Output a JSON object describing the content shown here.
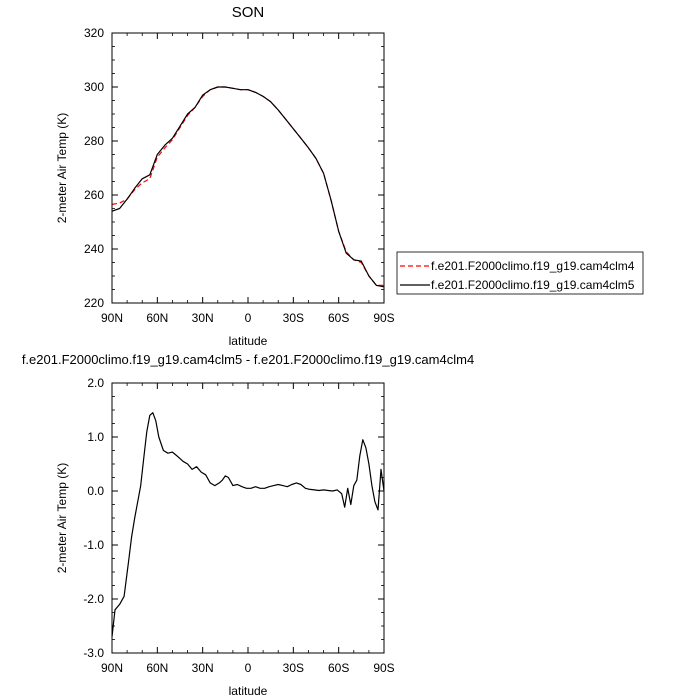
{
  "chart_data": [
    {
      "type": "line",
      "title": "SON",
      "xlabel": "latitude",
      "ylabel": "2-meter Air Temp (K)",
      "x_ticks": [
        "90N",
        "60N",
        "30N",
        "0",
        "30S",
        "60S",
        "90S"
      ],
      "y_ticks": [
        "220",
        "240",
        "260",
        "280",
        "300",
        "320"
      ],
      "xlim": [
        90,
        -90
      ],
      "ylim": [
        220,
        320
      ],
      "legend_position": "right",
      "series": [
        {
          "name": "f.e201.F2000climo.f19_g19.cam4clm4",
          "color": "#ff0000",
          "dash": "dashed",
          "x": [
            90,
            85,
            80,
            75,
            70,
            65,
            60,
            55,
            50,
            45,
            40,
            35,
            30,
            25,
            20,
            15,
            10,
            5,
            0,
            -5,
            -10,
            -15,
            -20,
            -25,
            -30,
            -35,
            -40,
            -45,
            -50,
            -55,
            -60,
            -65,
            -70,
            -75,
            -80,
            -85,
            -90
          ],
          "values": [
            256.5,
            257.0,
            258.5,
            262.0,
            264.5,
            266.0,
            274.0,
            277.5,
            280.5,
            285.0,
            289.5,
            292.5,
            296.5,
            299.0,
            300.0,
            300.0,
            299.5,
            299.0,
            299.0,
            298.0,
            296.5,
            294.5,
            291.5,
            288.0,
            284.5,
            281.0,
            277.5,
            273.5,
            268.0,
            258.0,
            246.5,
            239.0,
            236.0,
            235.0,
            230.0,
            226.5,
            226.5
          ]
        },
        {
          "name": "f.e201.F2000climo.f19_g19.cam4clm5",
          "color": "#000000",
          "dash": "solid",
          "x": [
            90,
            85,
            80,
            75,
            70,
            65,
            60,
            55,
            50,
            45,
            40,
            35,
            30,
            25,
            20,
            15,
            10,
            5,
            0,
            -5,
            -10,
            -15,
            -20,
            -25,
            -30,
            -35,
            -40,
            -45,
            -50,
            -55,
            -60,
            -65,
            -70,
            -75,
            -80,
            -85,
            -90
          ],
          "values": [
            254.0,
            255.0,
            258.5,
            262.5,
            266.0,
            267.5,
            275.0,
            278.5,
            281.0,
            285.5,
            290.0,
            292.5,
            297.0,
            299.0,
            300.0,
            300.0,
            299.5,
            299.0,
            299.0,
            298.0,
            296.5,
            294.5,
            291.5,
            288.0,
            284.5,
            281.0,
            277.5,
            273.5,
            268.0,
            258.0,
            246.5,
            238.5,
            236.0,
            235.5,
            230.0,
            226.5,
            226.0
          ]
        }
      ]
    },
    {
      "type": "line",
      "title": "f.e201.F2000climo.f19_g19.cam4clm5 - f.e201.F2000climo.f19_g19.cam4clm4",
      "xlabel": "latitude",
      "ylabel": "2-meter Air Temp (K)",
      "x_ticks": [
        "90N",
        "60N",
        "30N",
        "0",
        "30S",
        "60S",
        "90S"
      ],
      "y_ticks": [
        "-3.0",
        "-2.0",
        "-1.0",
        "0.0",
        "1.0",
        "2.0"
      ],
      "xlim": [
        90,
        -90
      ],
      "ylim": [
        -3.0,
        2.0
      ],
      "series": [
        {
          "color": "#000000",
          "x": [
            90,
            88,
            85,
            82,
            79,
            77,
            75,
            73,
            71,
            69,
            67,
            65,
            63,
            61,
            59,
            56,
            53,
            50,
            47,
            45,
            43,
            40,
            37,
            34,
            31,
            28,
            25,
            22,
            19,
            17,
            15,
            13,
            10,
            7,
            4,
            1,
            -2,
            -5,
            -8,
            -11,
            -14,
            -17,
            -20,
            -23,
            -26,
            -29,
            -32,
            -35,
            -38,
            -41,
            -44,
            -47,
            -50,
            -53,
            -56,
            -59,
            -62,
            -64,
            -66,
            -68,
            -70,
            -72,
            -74,
            -76,
            -78,
            -80,
            -82,
            -84,
            -86,
            -88,
            -90
          ],
          "values": [
            -2.7,
            -2.2,
            -2.1,
            -1.95,
            -1.3,
            -0.85,
            -0.5,
            -0.2,
            0.1,
            0.6,
            1.1,
            1.4,
            1.45,
            1.3,
            1.0,
            0.75,
            0.7,
            0.72,
            0.65,
            0.6,
            0.55,
            0.5,
            0.4,
            0.45,
            0.35,
            0.3,
            0.15,
            0.1,
            0.15,
            0.2,
            0.28,
            0.25,
            0.1,
            0.12,
            0.08,
            0.05,
            0.05,
            0.08,
            0.05,
            0.05,
            0.08,
            0.1,
            0.12,
            0.1,
            0.08,
            0.12,
            0.15,
            0.12,
            0.05,
            0.03,
            0.02,
            0.01,
            0.02,
            0.01,
            0.0,
            0.02,
            -0.05,
            -0.3,
            0.05,
            -0.25,
            0.1,
            0.2,
            0.65,
            0.95,
            0.8,
            0.5,
            0.1,
            -0.2,
            -0.35,
            0.4,
            0.0
          ]
        }
      ]
    }
  ]
}
